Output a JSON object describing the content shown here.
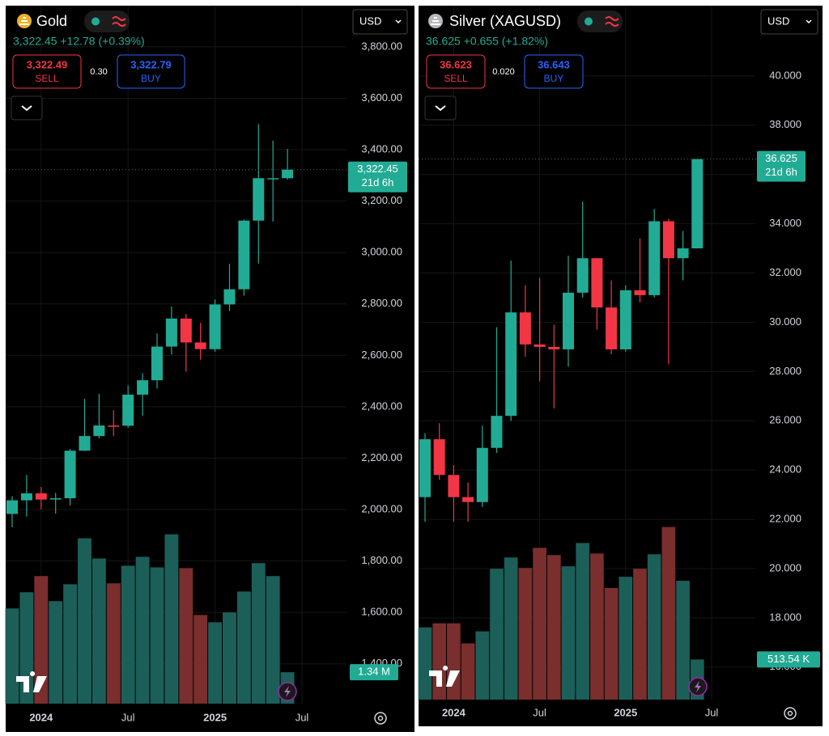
{
  "chart_data": [
    {
      "type": "candlestick",
      "symbol": "Gold",
      "quote": "3,322.45 +12.78 (+0.39%)",
      "sell_price": "3,322.49",
      "sell_label": "SELL",
      "spread": "0.30",
      "buy_price": "3,322.79",
      "buy_label": "BUY",
      "currency": "USD",
      "price_tag": "3,322.45",
      "countdown": "21d 6h",
      "volume_tag": "1.34 M",
      "categories": [
        null,
        null,
        "2024",
        null,
        null,
        null,
        null,
        null,
        "Jul",
        null,
        null,
        null,
        null,
        null,
        "2025",
        null,
        null,
        null,
        null,
        null,
        "Jul"
      ],
      "open": [
        1983,
        2036,
        2063,
        2039,
        2044,
        2229,
        2286,
        2327,
        2326,
        2447,
        2503,
        2634,
        2743,
        2650,
        2624,
        2798,
        2857,
        3124,
        3289,
        3289,
        null
      ],
      "high": [
        2052,
        2135,
        2088,
        2065,
        2236,
        2431,
        2450,
        2387,
        2483,
        2531,
        2685,
        2790,
        2761,
        2726,
        2817,
        2956,
        3128,
        3500,
        3435,
        3403,
        null
      ],
      "low": [
        1931,
        1973,
        2001,
        1984,
        2016,
        2228,
        2277,
        2286,
        2318,
        2364,
        2471,
        2603,
        2536,
        2583,
        2614,
        2772,
        2832,
        2957,
        3120,
        3283,
        null
      ],
      "close": [
        2036,
        2063,
        2039,
        2044,
        2229,
        2286,
        2327,
        2326,
        2447,
        2503,
        2634,
        2743,
        2650,
        2624,
        2798,
        2857,
        3124,
        3289,
        3289,
        3322.45,
        null
      ],
      "volume": [
        4.06,
        4.75,
        5.44,
        4.37,
        5.09,
        7.05,
        6.19,
        5.13,
        5.88,
        6.26,
        5.81,
        7.22,
        5.78,
        3.78,
        3.47,
        3.89,
        4.78,
        5.99,
        5.44,
        1.34,
        null
      ],
      "ylim": [
        1245,
        3957
      ],
      "volume_lim": [
        0,
        10
      ],
      "yticks": [
        {
          "value": 1400,
          "label": "1,400.00"
        },
        {
          "value": 1600,
          "label": "1,600.00"
        },
        {
          "value": 1800,
          "label": "1,800.00"
        },
        {
          "value": 2000,
          "label": "2,000.00"
        },
        {
          "value": 2200,
          "label": "2,200.00"
        },
        {
          "value": 2400,
          "label": "2,400.00"
        },
        {
          "value": 2600,
          "label": "2,600.00"
        },
        {
          "value": 2800,
          "label": "2,800.00"
        },
        {
          "value": 3000,
          "label": "3,000.00"
        },
        {
          "value": 3200,
          "label": "3,200.00"
        },
        {
          "value": 3400,
          "label": "3,400.00"
        },
        {
          "value": 3600,
          "label": "3,600.00"
        },
        {
          "value": 3800,
          "label": "3,800.00"
        }
      ],
      "up_color": "#22ab94",
      "down_color": "#f23645",
      "volume_up_color": "#1c5f58",
      "volume_down_color": "#7a2e2e",
      "icon_color": "#e9b127",
      "grid": true
    },
    {
      "type": "candlestick",
      "symbol": "Silver (XAGUSD)",
      "quote": "36.625 +0.655 (+1.82%)",
      "sell_price": "36.623",
      "sell_label": "SELL",
      "spread": "0.020",
      "buy_price": "36.643",
      "buy_label": "BUY",
      "currency": "USD",
      "price_tag": "36.625",
      "countdown": "21d 6h",
      "volume_tag": "513.54 K",
      "categories": [
        null,
        null,
        "2024",
        null,
        null,
        null,
        null,
        null,
        "Jul",
        null,
        null,
        null,
        null,
        null,
        "2025",
        null,
        null,
        null,
        null,
        null,
        "Jul"
      ],
      "open": [
        22.9,
        25.25,
        23.8,
        22.9,
        22.7,
        24.9,
        26.2,
        30.4,
        29.1,
        29.0,
        28.9,
        31.2,
        32.6,
        30.6,
        28.9,
        31.3,
        31.1,
        34.1,
        32.6,
        33.0,
        null
      ],
      "high": [
        25.5,
        25.9,
        24.2,
        23.5,
        25.8,
        29.8,
        32.5,
        31.5,
        31.8,
        29.9,
        32.7,
        34.9,
        32.6,
        31.7,
        31.5,
        33.4,
        34.6,
        34.2,
        33.7,
        36.6,
        null
      ],
      "low": [
        21.9,
        23.6,
        21.9,
        21.9,
        22.5,
        24.7,
        26.0,
        28.6,
        27.6,
        26.5,
        28.2,
        31.0,
        29.7,
        28.7,
        28.8,
        30.8,
        31.0,
        28.3,
        31.7,
        33.0,
        null
      ],
      "close": [
        25.25,
        23.8,
        22.9,
        22.7,
        24.9,
        26.2,
        30.4,
        29.1,
        29.0,
        28.9,
        31.2,
        32.6,
        30.6,
        28.9,
        31.3,
        31.1,
        34.1,
        32.6,
        33.0,
        36.625,
        null
      ],
      "volume": [
        924,
        976,
        976,
        719,
        873,
        1674,
        1818,
        1684,
        1941,
        1849,
        1705,
        2003,
        1869,
        1428,
        1571,
        1674,
        1859,
        2208,
        1520,
        513.54,
        null
      ],
      "ylim": [
        14.68,
        42.82
      ],
      "volume_lim": [
        0,
        3000
      ],
      "yticks": [
        {
          "value": 16,
          "label": "16.000"
        },
        {
          "value": 18,
          "label": "18.000"
        },
        {
          "value": 20,
          "label": "20.000"
        },
        {
          "value": 22,
          "label": "22.000"
        },
        {
          "value": 24,
          "label": "24.000"
        },
        {
          "value": 26,
          "label": "26.000"
        },
        {
          "value": 28,
          "label": "28.000"
        },
        {
          "value": 30,
          "label": "30.000"
        },
        {
          "value": 32,
          "label": "32.000"
        },
        {
          "value": 34,
          "label": "34.000"
        },
        {
          "value": 36,
          "label": "36.000"
        },
        {
          "value": 38,
          "label": "38.000"
        },
        {
          "value": 40,
          "label": "40.000"
        }
      ],
      "up_color": "#22ab94",
      "down_color": "#f23645",
      "volume_up_color": "#1c5f58",
      "volume_down_color": "#7a2e2e",
      "icon_color": "#b8b8bc",
      "grid": true
    }
  ]
}
